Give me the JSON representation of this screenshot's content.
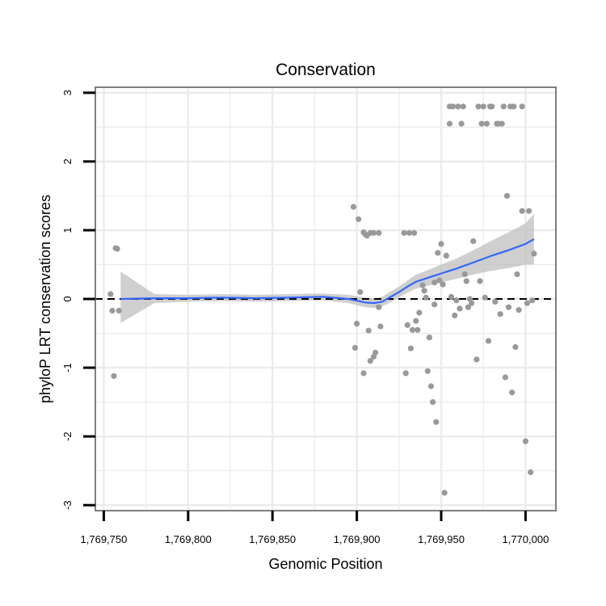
{
  "chart_data": {
    "type": "scatter",
    "title": "Conservation",
    "xlabel": "Genomic Position",
    "ylabel": "phyloP LRT conservation scores",
    "xlim": [
      1769745,
      1770018
    ],
    "ylim": [
      -3.08,
      3.08
    ],
    "xticks": [
      1769750,
      1769800,
      1769850,
      1769900,
      1769950,
      1770000
    ],
    "xtick_labels": [
      "1,769,750",
      "1,769,800",
      "1,769,850",
      "1,769,900",
      "1,769,950",
      "1,770,000"
    ],
    "yticks": [
      -3,
      -2,
      -1,
      0,
      1,
      2,
      3
    ],
    "ytick_labels": [
      "-3",
      "-2",
      "-1",
      "0",
      "1",
      "2",
      "3"
    ],
    "reference_line": {
      "y": 0,
      "style": "dashed"
    },
    "grid": true,
    "colors": {
      "points": "#999999",
      "smooth": "#3366ff",
      "band": "#bfbfbf",
      "grid": "#ebebeb",
      "frame": "#7f7f7f"
    },
    "series": [
      {
        "name": "scores",
        "points": [
          [
            1769754,
            0.07
          ],
          [
            1769755,
            -0.17
          ],
          [
            1769756,
            -1.12
          ],
          [
            1769757,
            0.74
          ],
          [
            1769758,
            0.73
          ],
          [
            1769759,
            -0.17
          ],
          [
            1769898,
            1.34
          ],
          [
            1769899,
            -0.71
          ],
          [
            1769900,
            -0.36
          ],
          [
            1769901,
            1.16
          ],
          [
            1769902,
            0.1
          ],
          [
            1769904,
            0.97
          ],
          [
            1769904,
            -1.08
          ],
          [
            1769905,
            0.94
          ],
          [
            1769906,
            0.92
          ],
          [
            1769907,
            -0.46
          ],
          [
            1769908,
            0.96
          ],
          [
            1769908,
            -0.9
          ],
          [
            1769910,
            -0.84
          ],
          [
            1769910,
            0.96
          ],
          [
            1769911,
            -0.78
          ],
          [
            1769913,
            0.96
          ],
          [
            1769913,
            -0.12
          ],
          [
            1769914,
            -0.4
          ],
          [
            1769928,
            0.96
          ],
          [
            1769929,
            -1.08
          ],
          [
            1769930,
            -0.38
          ],
          [
            1769931,
            0.96
          ],
          [
            1769932,
            -0.72
          ],
          [
            1769933,
            -0.45
          ],
          [
            1769934,
            0.96
          ],
          [
            1769935,
            -0.32
          ],
          [
            1769936,
            -0.45
          ],
          [
            1769937,
            -0.2
          ],
          [
            1769939,
            0.2
          ],
          [
            1769940,
            0.12
          ],
          [
            1769941,
            0.02
          ],
          [
            1769942,
            -1.05
          ],
          [
            1769943,
            -0.56
          ],
          [
            1769944,
            -1.27
          ],
          [
            1769945,
            -1.5
          ],
          [
            1769946,
            0.24
          ],
          [
            1769946,
            -0.08
          ],
          [
            1769947,
            -1.79
          ],
          [
            1769948,
            0.67
          ],
          [
            1769949,
            0.27
          ],
          [
            1769950,
            0.8
          ],
          [
            1769951,
            0.21
          ],
          [
            1769952,
            -2.82
          ],
          [
            1769953,
            0.63
          ],
          [
            1769955,
            2.8
          ],
          [
            1769955,
            2.55
          ],
          [
            1769956,
            0.03
          ],
          [
            1769957,
            2.8
          ],
          [
            1769958,
            -0.24
          ],
          [
            1769959,
            -0.02
          ],
          [
            1769960,
            2.8
          ],
          [
            1769961,
            -0.14
          ],
          [
            1769962,
            2.55
          ],
          [
            1769963,
            2.8
          ],
          [
            1769964,
            0.36
          ],
          [
            1769965,
            0.26
          ],
          [
            1769966,
            -0.12
          ],
          [
            1769967,
            0.0
          ],
          [
            1769968,
            -0.06
          ],
          [
            1769969,
            0.84
          ],
          [
            1769971,
            -0.88
          ],
          [
            1769972,
            2.8
          ],
          [
            1769973,
            0.26
          ],
          [
            1769974,
            2.55
          ],
          [
            1769975,
            2.8
          ],
          [
            1769976,
            0.02
          ],
          [
            1769977,
            2.55
          ],
          [
            1769978,
            -0.61
          ],
          [
            1769979,
            2.8
          ],
          [
            1769980,
            2.8
          ],
          [
            1769982,
            -0.04
          ],
          [
            1769983,
            2.55
          ],
          [
            1769984,
            2.55
          ],
          [
            1769985,
            -0.22
          ],
          [
            1769986,
            2.55
          ],
          [
            1769987,
            2.8
          ],
          [
            1769988,
            -1.14
          ],
          [
            1769989,
            1.5
          ],
          [
            1769990,
            -0.12
          ],
          [
            1769991,
            2.8
          ],
          [
            1769992,
            -1.36
          ],
          [
            1769993,
            2.8
          ],
          [
            1769994,
            -0.7
          ],
          [
            1769995,
            0.36
          ],
          [
            1769996,
            -0.16
          ],
          [
            1769998,
            2.8
          ],
          [
            1769998,
            1.28
          ],
          [
            1770000,
            -2.07
          ],
          [
            1770001,
            -0.06
          ],
          [
            1770002,
            1.28
          ],
          [
            1770003,
            -2.52
          ],
          [
            1770004,
            -0.02
          ],
          [
            1770005,
            0.66
          ]
        ]
      }
    ],
    "smooth": {
      "x": [
        1769760,
        1769780,
        1769800,
        1769820,
        1769840,
        1769860,
        1769880,
        1769895,
        1769905,
        1769910,
        1769915,
        1769920,
        1769925,
        1769930,
        1769935,
        1769940,
        1769950,
        1769960,
        1769970,
        1769980,
        1769990,
        1770000,
        1770005
      ],
      "y": [
        0.0,
        0.01,
        0.01,
        0.02,
        0.01,
        0.02,
        0.03,
        0.0,
        -0.05,
        -0.06,
        -0.04,
        0.03,
        0.1,
        0.18,
        0.25,
        0.29,
        0.37,
        0.45,
        0.54,
        0.63,
        0.71,
        0.8,
        0.87
      ],
      "lower": [
        -0.35,
        -0.06,
        -0.04,
        -0.03,
        -0.04,
        -0.03,
        -0.02,
        -0.06,
        -0.12,
        -0.13,
        -0.11,
        -0.05,
        0.02,
        0.09,
        0.15,
        0.18,
        0.24,
        0.3,
        0.36,
        0.41,
        0.45,
        0.5,
        0.5
      ],
      "upper": [
        0.4,
        0.07,
        0.06,
        0.07,
        0.06,
        0.07,
        0.08,
        0.06,
        0.02,
        0.01,
        0.03,
        0.11,
        0.18,
        0.27,
        0.35,
        0.4,
        0.5,
        0.6,
        0.72,
        0.85,
        0.97,
        1.1,
        1.24
      ]
    }
  }
}
